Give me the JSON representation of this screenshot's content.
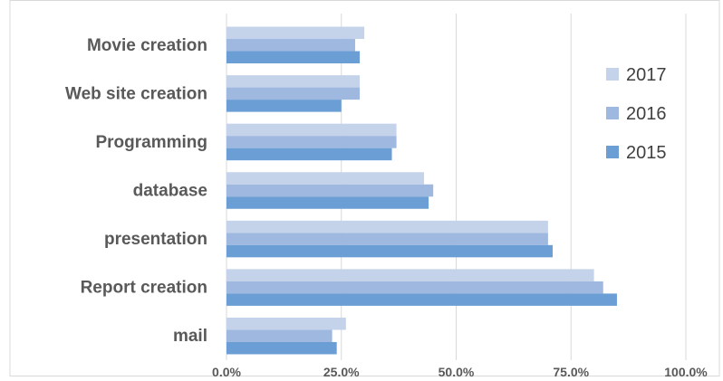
{
  "chart_data": {
    "type": "bar",
    "orientation": "horizontal",
    "title": "",
    "xlabel": "",
    "ylabel": "",
    "categories": [
      "Movie creation",
      "Web site creation",
      "Programming",
      "database ",
      "presentation",
      "Report creation",
      "mail"
    ],
    "series": [
      {
        "name": "2017",
        "color": "#c5d3ea",
        "values": [
          0.3,
          0.29,
          0.37,
          0.43,
          0.7,
          0.8,
          0.26
        ]
      },
      {
        "name": "2016",
        "color": "#9fb8e0",
        "values": [
          0.28,
          0.29,
          0.37,
          0.45,
          0.7,
          0.82,
          0.23
        ]
      },
      {
        "name": "2015",
        "color": "#6b9ed4",
        "values": [
          0.29,
          0.25,
          0.36,
          0.44,
          0.71,
          0.85,
          0.24
        ]
      }
    ],
    "xlim": [
      0,
      1
    ],
    "xticks": [
      0,
      0.25,
      0.5,
      0.75,
      1.0
    ],
    "xtick_labels": [
      "0.0%",
      "25.0%",
      "50.0%",
      "75.0%",
      "100.0%"
    ],
    "grid": "vertical",
    "legend_position": "right",
    "legend_order": [
      "2017",
      "2016",
      "2015"
    ]
  }
}
